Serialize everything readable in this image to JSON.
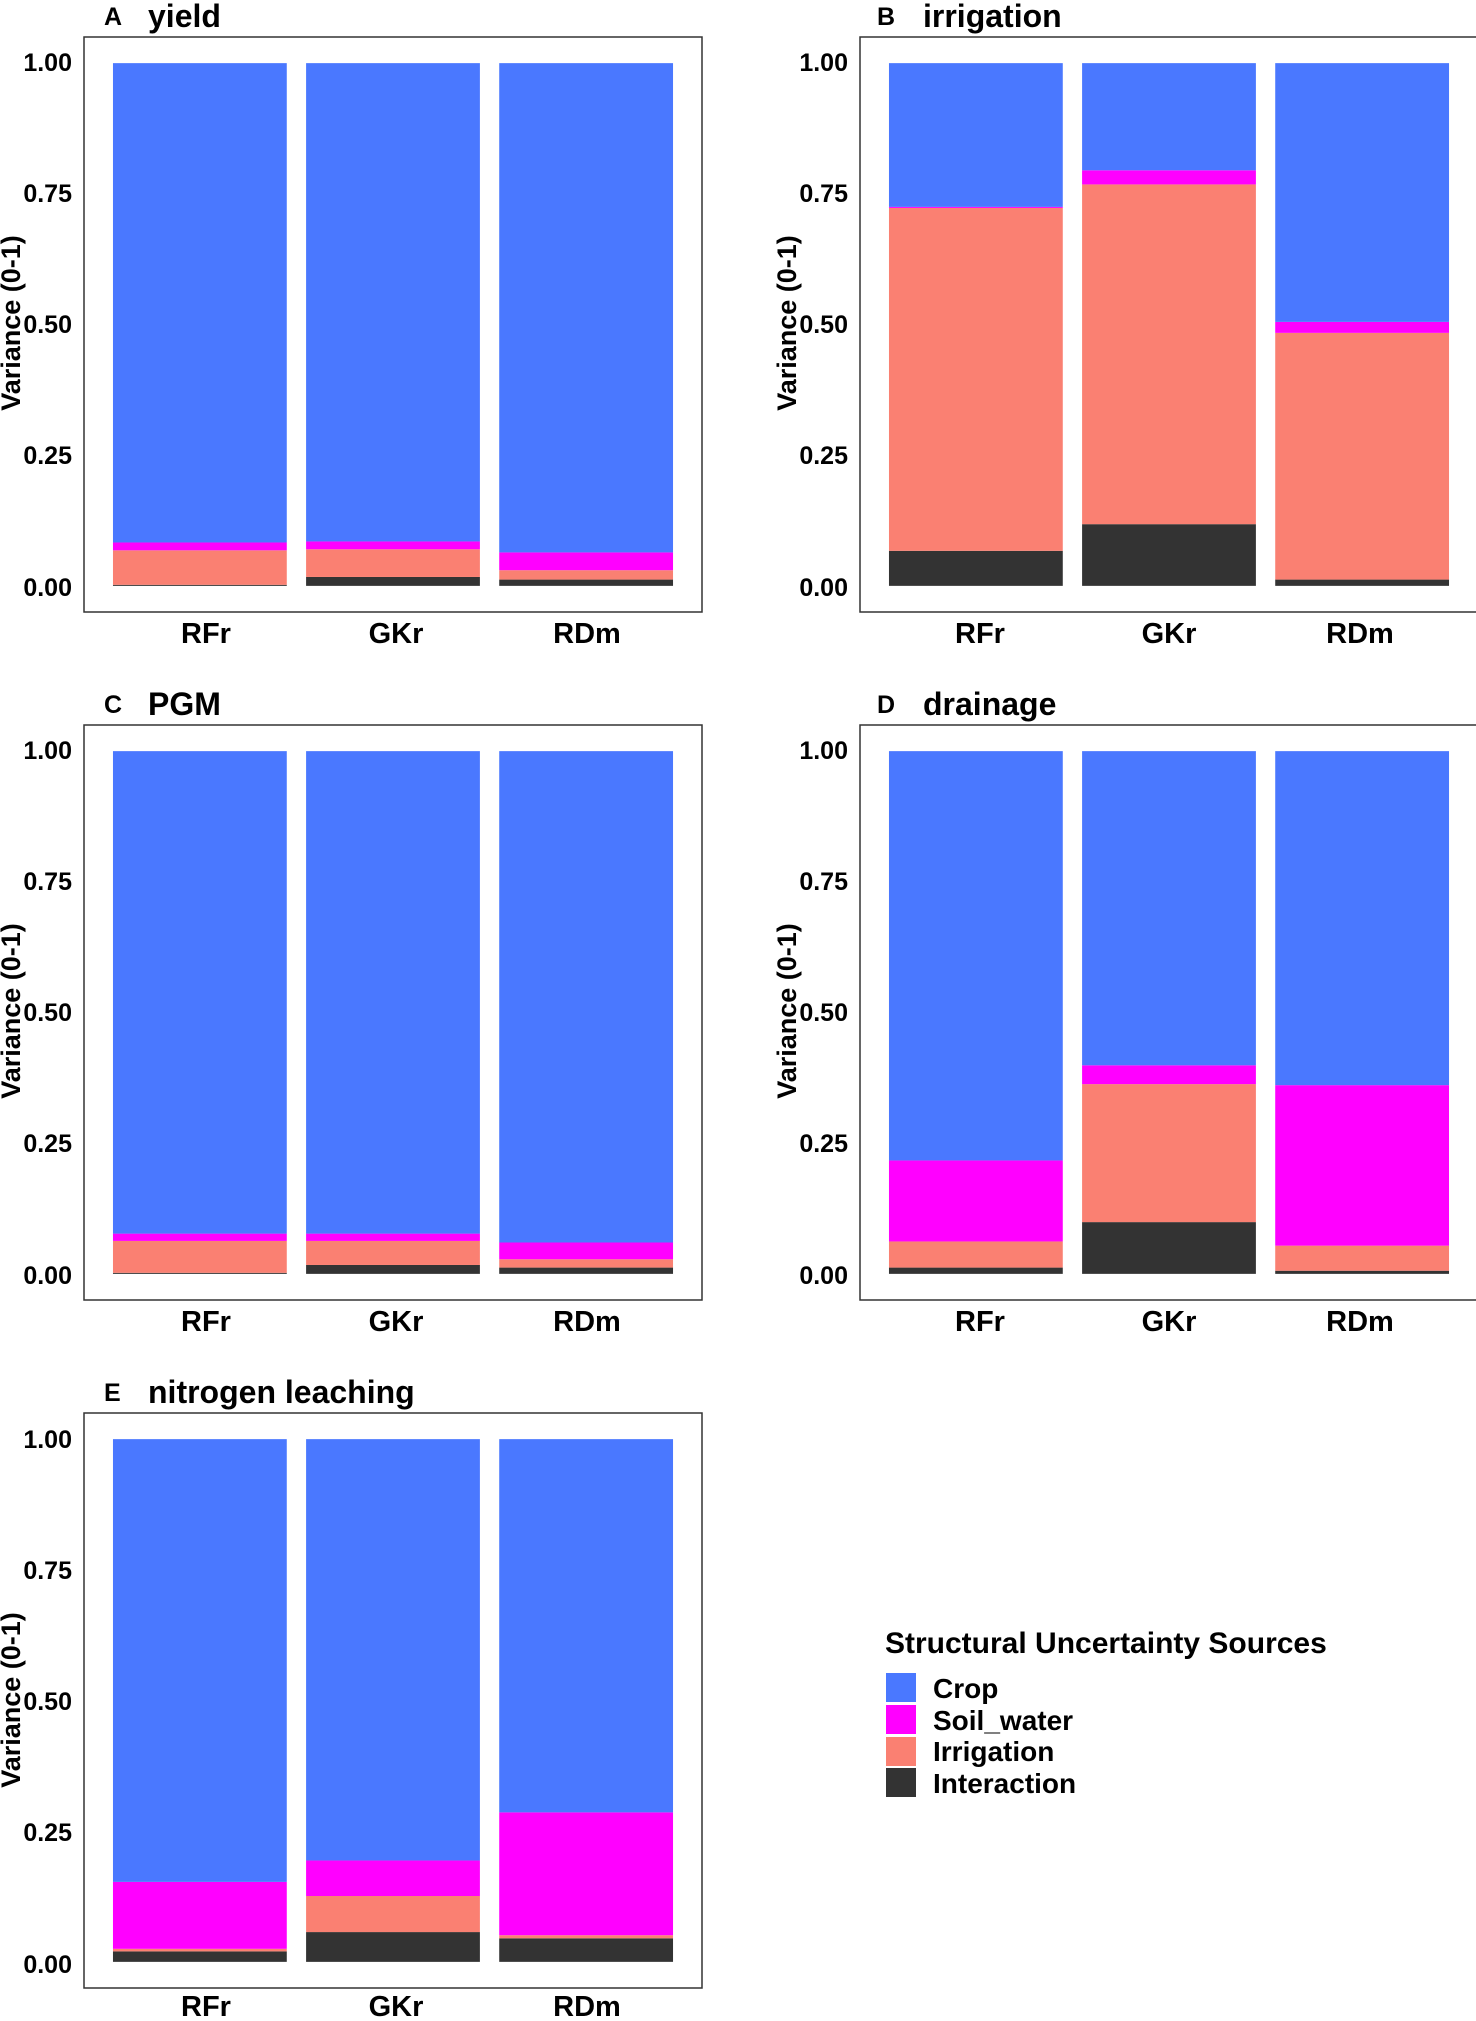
{
  "legend": {
    "title": "Structural Uncertainty Sources",
    "items": [
      {
        "name": "Crop",
        "color": "#4a78ff"
      },
      {
        "name": "Soil_water",
        "color": "#ff00ff"
      },
      {
        "name": "Irrigation",
        "color": "#fa8072"
      },
      {
        "name": "Interaction",
        "color": "#333333"
      }
    ]
  },
  "chart_data": [
    {
      "type": "bar",
      "stacked": true,
      "panel": "A",
      "title": "yield",
      "ylabel": "Variance (0-1)",
      "xlabel": "",
      "ylim": [
        0,
        1
      ],
      "yticks": [
        "0.00",
        "0.25",
        "0.50",
        "0.75",
        "1.00"
      ],
      "categories": [
        "RFr",
        "GKr",
        "RDm"
      ],
      "series": [
        {
          "name": "Interaction",
          "values": [
            0.002,
            0.017,
            0.012
          ]
        },
        {
          "name": "Irrigation",
          "values": [
            0.066,
            0.053,
            0.018
          ]
        },
        {
          "name": "Soil_water",
          "values": [
            0.015,
            0.015,
            0.034
          ]
        },
        {
          "name": "Crop",
          "values": [
            0.917,
            0.915,
            0.936
          ]
        }
      ]
    },
    {
      "type": "bar",
      "stacked": true,
      "panel": "B",
      "title": "irrigation",
      "ylabel": "Variance (0-1)",
      "xlabel": "",
      "ylim": [
        0,
        1
      ],
      "yticks": [
        "0.00",
        "0.25",
        "0.50",
        "0.75",
        "1.00"
      ],
      "categories": [
        "RFr",
        "GKr",
        "RDm"
      ],
      "series": [
        {
          "name": "Interaction",
          "values": [
            0.067,
            0.118,
            0.012
          ]
        },
        {
          "name": "Irrigation",
          "values": [
            0.656,
            0.65,
            0.472
          ]
        },
        {
          "name": "Soil_water",
          "values": [
            0.002,
            0.027,
            0.021
          ]
        },
        {
          "name": "Crop",
          "values": [
            0.275,
            0.205,
            0.495
          ]
        }
      ]
    },
    {
      "type": "bar",
      "stacked": true,
      "panel": "C",
      "title": "PGM",
      "ylabel": "Variance (0-1)",
      "xlabel": "",
      "ylim": [
        0,
        1
      ],
      "yticks": [
        "0.00",
        "0.25",
        "0.50",
        "0.75",
        "1.00"
      ],
      "categories": [
        "RFr",
        "GKr",
        "RDm"
      ],
      "series": [
        {
          "name": "Interaction",
          "values": [
            0.002,
            0.017,
            0.012
          ]
        },
        {
          "name": "Irrigation",
          "values": [
            0.061,
            0.046,
            0.016
          ]
        },
        {
          "name": "Soil_water",
          "values": [
            0.014,
            0.014,
            0.032
          ]
        },
        {
          "name": "Crop",
          "values": [
            0.923,
            0.923,
            0.94
          ]
        }
      ]
    },
    {
      "type": "bar",
      "stacked": true,
      "panel": "D",
      "title": "drainage",
      "ylabel": "Variance (0-1)",
      "xlabel": "",
      "ylim": [
        0,
        1
      ],
      "yticks": [
        "0.00",
        "0.25",
        "0.50",
        "0.75",
        "1.00"
      ],
      "categories": [
        "RFr",
        "GKr",
        "RDm"
      ],
      "series": [
        {
          "name": "Interaction",
          "values": [
            0.012,
            0.099,
            0.006
          ]
        },
        {
          "name": "Irrigation",
          "values": [
            0.05,
            0.264,
            0.048
          ]
        },
        {
          "name": "Soil_water",
          "values": [
            0.155,
            0.036,
            0.307
          ]
        },
        {
          "name": "Crop",
          "values": [
            0.783,
            0.601,
            0.639
          ]
        }
      ]
    },
    {
      "type": "bar",
      "stacked": true,
      "panel": "E",
      "title": "nitrogen leaching",
      "ylabel": "Variance (0-1)",
      "xlabel": "",
      "ylim": [
        0,
        1
      ],
      "yticks": [
        "0.00",
        "0.25",
        "0.50",
        "0.75",
        "1.00"
      ],
      "categories": [
        "RFr",
        "GKr",
        "RDm"
      ],
      "series": [
        {
          "name": "Interaction",
          "values": [
            0.02,
            0.057,
            0.045
          ]
        },
        {
          "name": "Irrigation",
          "values": [
            0.005,
            0.069,
            0.006
          ]
        },
        {
          "name": "Soil_water",
          "values": [
            0.128,
            0.068,
            0.235
          ]
        },
        {
          "name": "Crop",
          "values": [
            0.847,
            0.806,
            0.714
          ]
        }
      ]
    }
  ]
}
